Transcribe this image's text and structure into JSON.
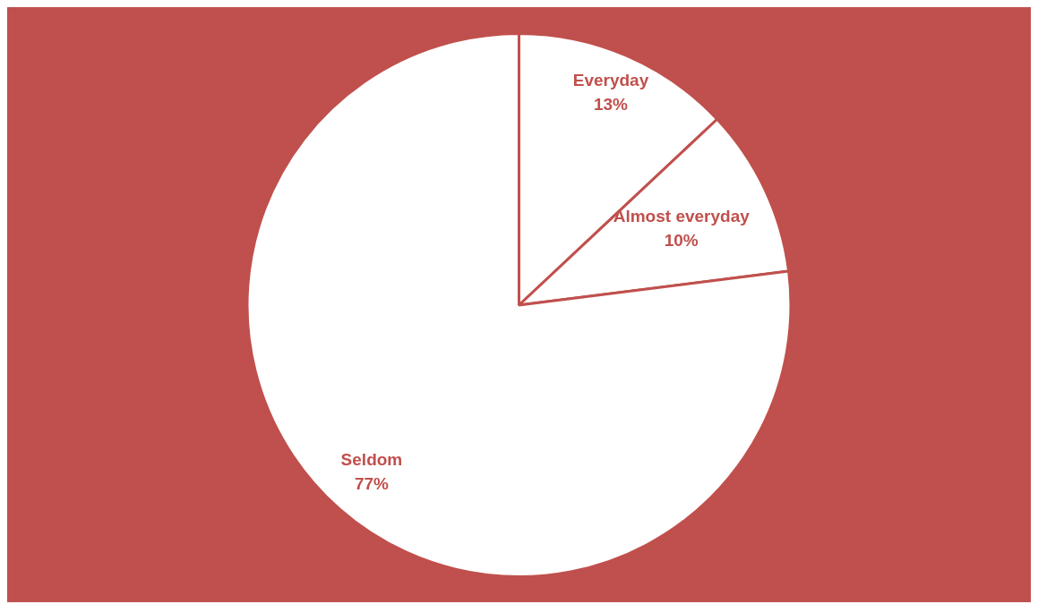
{
  "chart_data": {
    "type": "pie",
    "categories": [
      "Everyday",
      "Almost everyday",
      "Seldom"
    ],
    "values": [
      13,
      10,
      77
    ],
    "value_labels": [
      "13%",
      "10%",
      "77%"
    ],
    "colors": [
      "#ffffff",
      "#ffffff",
      "#ffffff"
    ]
  }
}
